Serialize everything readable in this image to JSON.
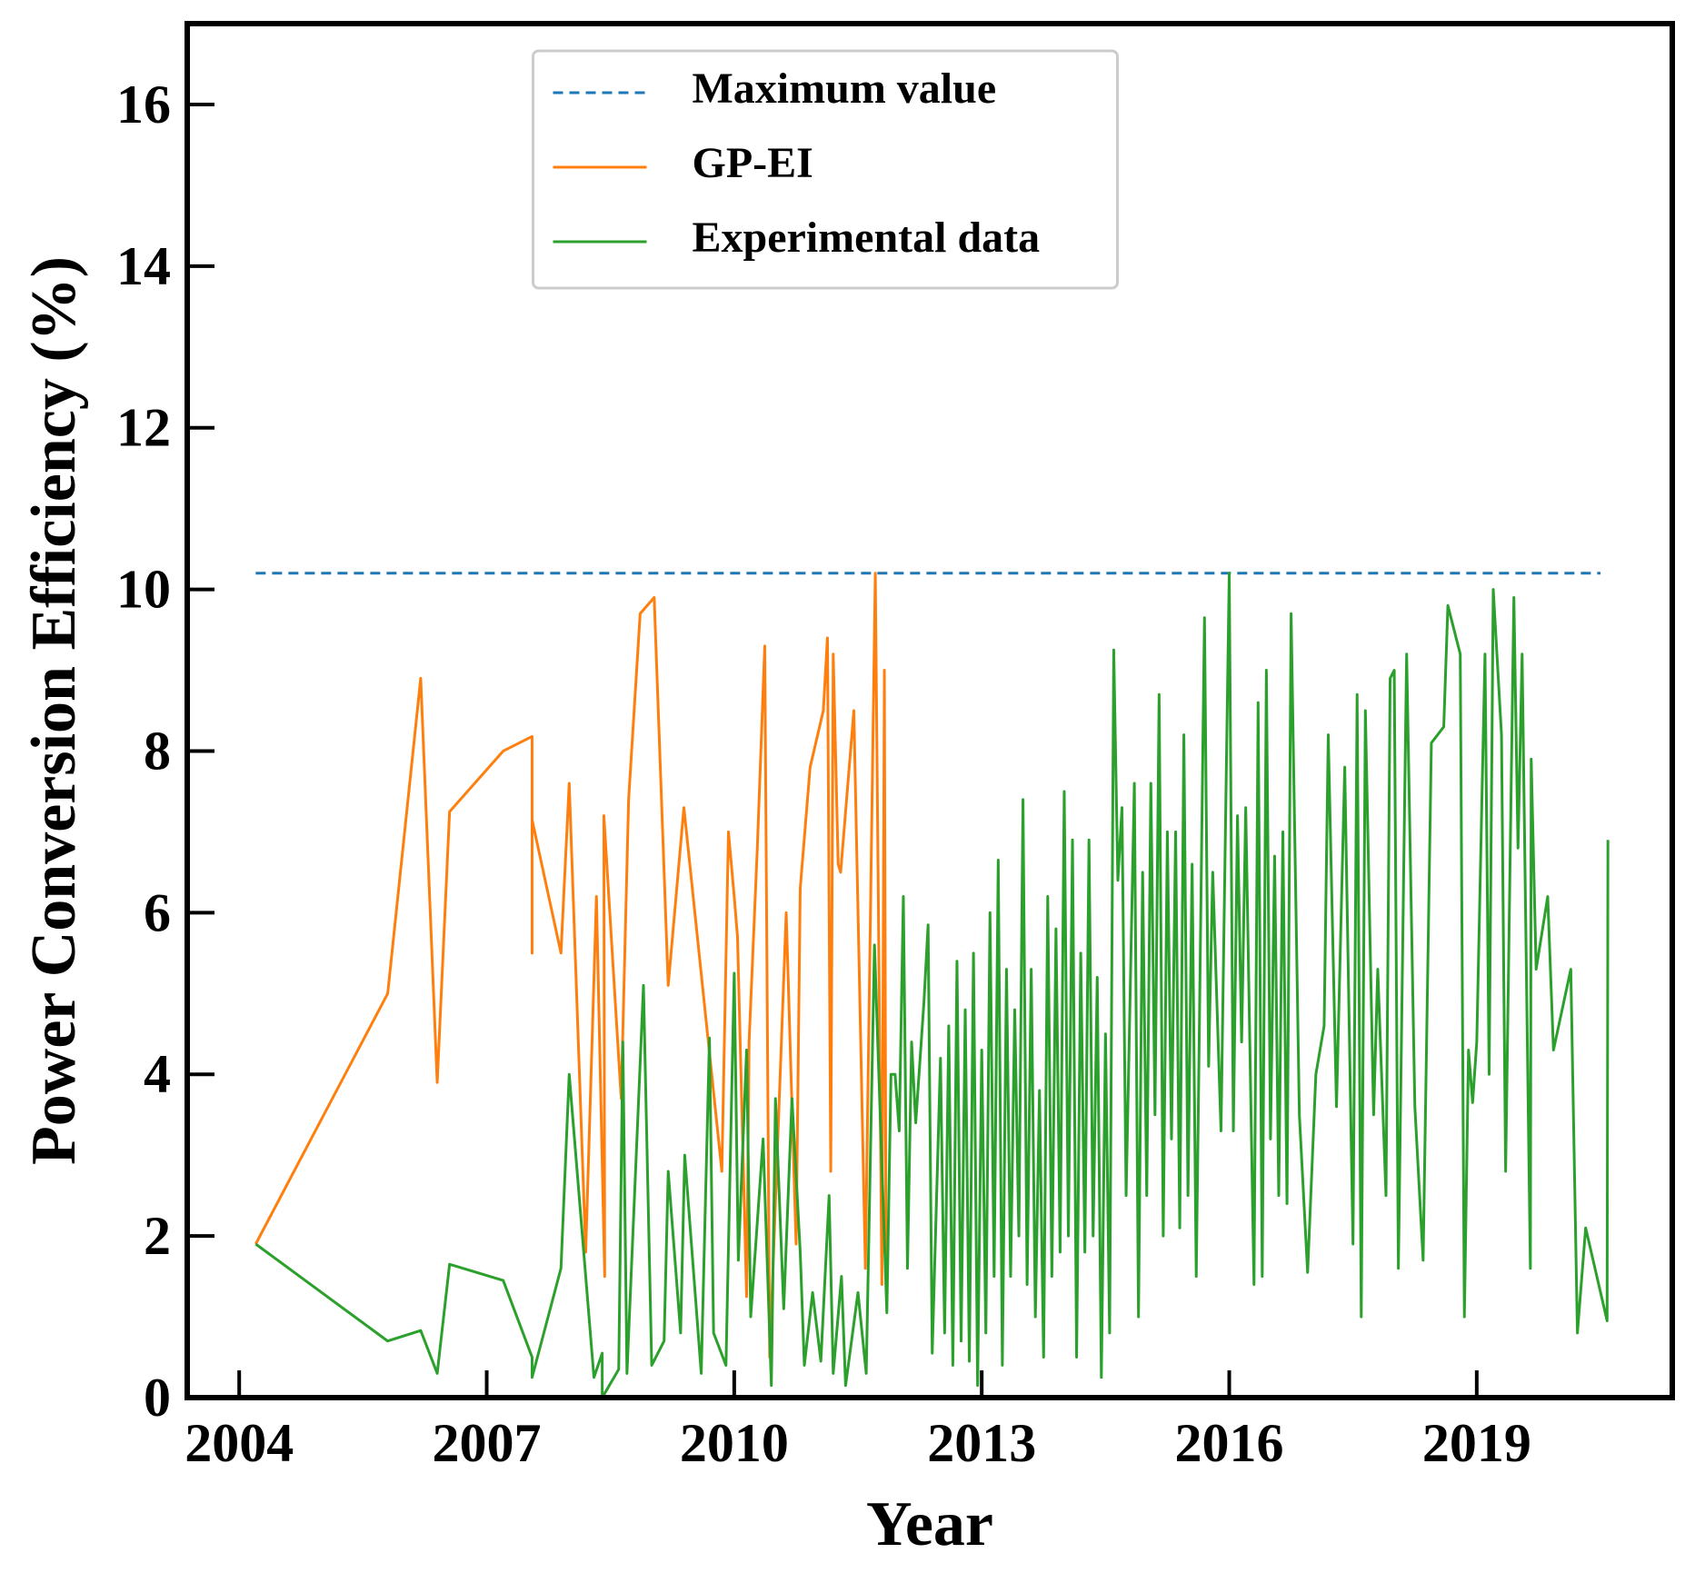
{
  "chart_data": {
    "type": "line",
    "xlabel": "Year",
    "ylabel": "Power Conversion Efficiency (%)",
    "xlim": [
      2003.37,
      2021.37
    ],
    "ylim": [
      0,
      17
    ],
    "xticks": [
      2004,
      2007,
      2010,
      2013,
      2016,
      2019
    ],
    "yticks": [
      0,
      2,
      4,
      6,
      8,
      10,
      12,
      14,
      16
    ],
    "legend": "upper center",
    "series": [
      {
        "name": "Maximum value",
        "color": "#1f77b4",
        "dash": true,
        "x": [
          2004.2,
          2020.5
        ],
        "values": [
          10.2,
          10.2
        ]
      },
      {
        "name": "GP-EI",
        "color": "#ff7f0e",
        "dash": false,
        "x": [
          2004.2,
          2005.8,
          2006.2,
          2006.4,
          2006.55,
          2007.2,
          2007.55,
          2007.55,
          2007.55,
          2007.9,
          2008.0,
          2008.2,
          2008.33,
          2008.43,
          2008.42,
          2008.63,
          2008.72,
          2008.86,
          2009.03,
          2009.2,
          2009.39,
          2009.85,
          2009.93,
          2010.0,
          2010.04,
          2010.15,
          2010.18,
          2010.28,
          2010.37,
          2010.43,
          2010.63,
          2010.75,
          2010.8,
          2010.92,
          2011.08,
          2011.13,
          2011.17,
          2011.2,
          2011.26,
          2011.29,
          2011.45,
          2011.59,
          2011.71,
          2011.79,
          2011.82,
          2011.84
        ],
        "values": [
          1.9,
          5.0,
          8.9,
          3.9,
          7.25,
          8.0,
          8.18,
          5.5,
          7.15,
          5.5,
          7.6,
          1.8,
          6.2,
          1.5,
          7.2,
          3.7,
          7.4,
          9.7,
          9.9,
          5.1,
          7.3,
          2.8,
          7.0,
          6.2,
          5.7,
          1.25,
          4.4,
          6.8,
          9.3,
          0.5,
          6.0,
          1.9,
          6.3,
          7.8,
          8.5,
          9.4,
          2.8,
          9.2,
          6.6,
          6.5,
          8.5,
          1.6,
          10.2,
          1.4,
          9.0,
          1.5
        ]
      },
      {
        "name": "Experimental data",
        "color": "#2ca02c",
        "dash": false,
        "x": [
          2004.2,
          2005.8,
          2006.2,
          2006.4,
          2006.55,
          2007.2,
          2007.55,
          2007.55,
          2007.9,
          2008.0,
          2008.3,
          2008.4,
          2008.4,
          2008.6,
          2008.65,
          2008.7,
          2008.9,
          2009.0,
          2009.15,
          2009.2,
          2009.35,
          2009.4,
          2009.6,
          2009.7,
          2009.75,
          2009.9,
          2010.0,
          2010.05,
          2010.15,
          2010.2,
          2010.35,
          2010.45,
          2010.5,
          2010.6,
          2010.7,
          2010.8,
          2010.85,
          2010.95,
          2011.05,
          2011.15,
          2011.2,
          2011.3,
          2011.35,
          2011.5,
          2011.6,
          2011.7,
          2011.85,
          2011.9,
          2011.95,
          2012.0,
          2012.05,
          2012.1,
          2012.15,
          2012.2,
          2012.3,
          2012.35,
          2012.4,
          2012.5,
          2012.55,
          2012.6,
          2012.65,
          2012.7,
          2012.75,
          2012.8,
          2012.85,
          2012.9,
          2012.95,
          2013.0,
          2013.05,
          2013.1,
          2013.15,
          2013.2,
          2013.25,
          2013.3,
          2013.35,
          2013.4,
          2013.45,
          2013.5,
          2013.55,
          2013.6,
          2013.65,
          2013.7,
          2013.75,
          2013.8,
          2013.85,
          2013.9,
          2013.95,
          2014.0,
          2014.05,
          2014.1,
          2014.15,
          2014.2,
          2014.25,
          2014.3,
          2014.35,
          2014.4,
          2014.45,
          2014.5,
          2014.55,
          2014.6,
          2014.65,
          2014.7,
          2014.75,
          2014.85,
          2014.9,
          2014.95,
          2015.0,
          2015.05,
          2015.1,
          2015.15,
          2015.2,
          2015.25,
          2015.3,
          2015.35,
          2015.4,
          2015.45,
          2015.5,
          2015.55,
          2015.6,
          2015.7,
          2015.75,
          2015.8,
          2015.9,
          2016.0,
          2016.05,
          2016.1,
          2016.15,
          2016.2,
          2016.3,
          2016.35,
          2016.4,
          2016.45,
          2016.5,
          2016.55,
          2016.6,
          2016.65,
          2016.7,
          2016.75,
          2016.85,
          2016.95,
          2017.05,
          2017.15,
          2017.2,
          2017.3,
          2017.4,
          2017.5,
          2017.55,
          2017.6,
          2017.65,
          2017.75,
          2017.8,
          2017.9,
          2017.95,
          2018.0,
          2018.05,
          2018.15,
          2018.25,
          2018.35,
          2018.45,
          2018.6,
          2018.65,
          2018.8,
          2018.85,
          2018.9,
          2018.95,
          2019.0,
          2019.1,
          2019.15,
          2019.2,
          2019.3,
          2019.35,
          2019.45,
          2019.5,
          2019.55,
          2019.65,
          2019.66,
          2019.72,
          2019.86,
          2019.93,
          2020.14,
          2020.22,
          2020.32,
          2020.58,
          2020.59
        ],
        "values": [
          1.9,
          0.7,
          0.83,
          0.3,
          1.65,
          1.45,
          0.5,
          0.25,
          1.6,
          4.0,
          0.25,
          0.55,
          0.0,
          0.35,
          4.4,
          0.3,
          5.1,
          0.4,
          0.7,
          2.8,
          0.8,
          3.0,
          0.3,
          4.45,
          0.8,
          0.4,
          5.25,
          1.7,
          4.3,
          1.0,
          3.2,
          0.15,
          3.7,
          1.1,
          3.7,
          1.8,
          0.4,
          1.3,
          0.45,
          2.5,
          0.3,
          1.5,
          0.15,
          1.3,
          0.3,
          5.6,
          1.05,
          4.0,
          4.0,
          3.3,
          6.2,
          1.6,
          4.4,
          3.4,
          4.9,
          5.85,
          0.55,
          4.2,
          0.8,
          4.6,
          0.4,
          5.4,
          0.7,
          4.8,
          0.45,
          5.5,
          0.15,
          4.3,
          0.8,
          6.0,
          1.5,
          6.65,
          0.4,
          5.3,
          1.5,
          4.8,
          2.0,
          7.4,
          1.4,
          5.3,
          1.0,
          3.8,
          0.5,
          6.2,
          1.5,
          5.8,
          1.8,
          7.5,
          2.0,
          6.9,
          0.5,
          5.5,
          1.8,
          6.9,
          2.0,
          5.2,
          0.25,
          4.5,
          0.8,
          9.25,
          6.4,
          7.3,
          2.5,
          7.6,
          1.0,
          6.5,
          2.5,
          7.6,
          3.5,
          8.7,
          2.0,
          7.0,
          3.2,
          7.0,
          2.1,
          8.2,
          2.5,
          6.6,
          1.5,
          9.65,
          4.1,
          6.5,
          3.3,
          10.2,
          3.3,
          7.2,
          4.4,
          7.3,
          1.4,
          8.6,
          1.5,
          9.0,
          3.2,
          6.7,
          2.5,
          7.0,
          2.4,
          9.7,
          3.5,
          1.55,
          4.0,
          4.6,
          8.2,
          3.6,
          7.8,
          1.9,
          8.7,
          1.0,
          8.5,
          3.5,
          5.3,
          2.5,
          8.9,
          9.0,
          1.6,
          9.2,
          3.6,
          1.7,
          8.1,
          8.3,
          9.8,
          9.2,
          1.0,
          4.3,
          3.65,
          4.4,
          9.2,
          4.0,
          10.0,
          8.2,
          2.8,
          9.9,
          6.8,
          9.2,
          1.6,
          7.9,
          5.3,
          6.2,
          4.3,
          5.3,
          0.8,
          2.1,
          0.95,
          6.9
        ]
      }
    ]
  }
}
